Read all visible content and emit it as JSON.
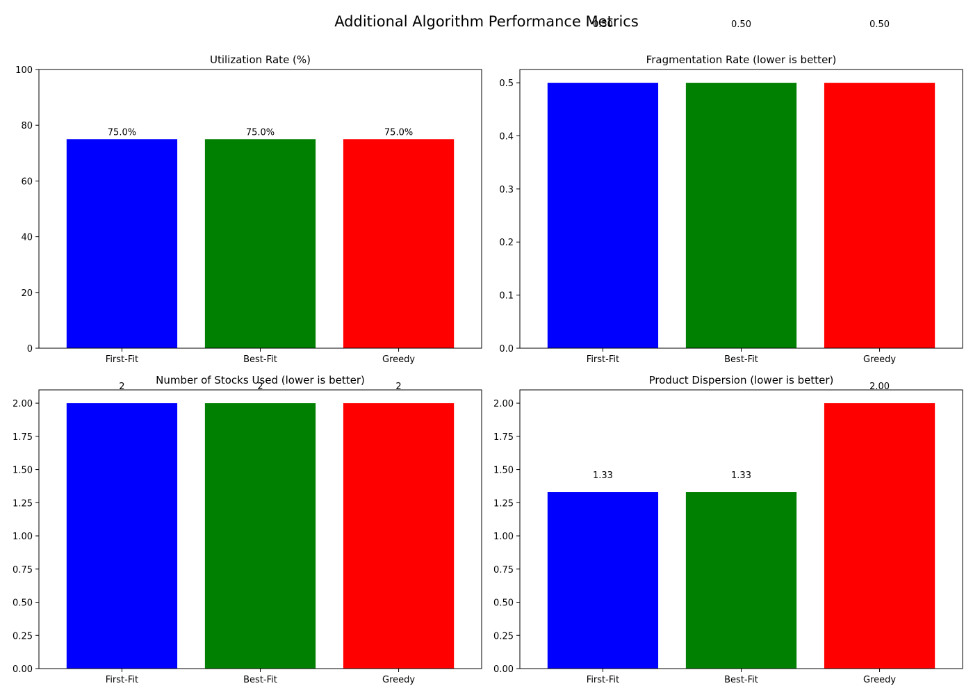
{
  "figure": {
    "title": "Additional Algorithm Performance Metrics"
  },
  "chart_data": [
    {
      "type": "bar",
      "title": "Utilization Rate (%)",
      "categories": [
        "First-Fit",
        "Best-Fit",
        "Greedy"
      ],
      "values": [
        75.0,
        75.0,
        75.0
      ],
      "value_labels": [
        "75.0%",
        "75.0%",
        "75.0%"
      ],
      "colors": [
        "#0000ff",
        "#008000",
        "#ff0000"
      ],
      "ylim": [
        0,
        100
      ],
      "yticks": [
        0,
        20,
        40,
        60,
        80,
        100
      ],
      "ytick_labels": [
        "0",
        "20",
        "40",
        "60",
        "80",
        "100"
      ],
      "xlabel": "",
      "ylabel": "",
      "grid": false
    },
    {
      "type": "bar",
      "title": "Fragmentation Rate (lower is better)",
      "categories": [
        "First-Fit",
        "Best-Fit",
        "Greedy"
      ],
      "values": [
        0.5,
        0.5,
        0.5
      ],
      "value_labels": [
        "0.50",
        "0.50",
        "0.50"
      ],
      "colors": [
        "#0000ff",
        "#008000",
        "#ff0000"
      ],
      "ylim": [
        0,
        0.525
      ],
      "yticks": [
        0,
        0.1,
        0.2,
        0.3,
        0.4,
        0.5
      ],
      "ytick_labels": [
        "0.0",
        "0.1",
        "0.2",
        "0.3",
        "0.4",
        "0.5"
      ],
      "xlabel": "",
      "ylabel": "",
      "grid": false
    },
    {
      "type": "bar",
      "title": "Number of Stocks Used (lower is better)",
      "categories": [
        "First-Fit",
        "Best-Fit",
        "Greedy"
      ],
      "values": [
        2,
        2,
        2
      ],
      "value_labels": [
        "2",
        "2",
        "2"
      ],
      "colors": [
        "#0000ff",
        "#008000",
        "#ff0000"
      ],
      "ylim": [
        0,
        2.1
      ],
      "yticks": [
        0,
        0.25,
        0.5,
        0.75,
        1.0,
        1.25,
        1.5,
        1.75,
        2.0
      ],
      "ytick_labels": [
        "0.00",
        "0.25",
        "0.50",
        "0.75",
        "1.00",
        "1.25",
        "1.50",
        "1.75",
        "2.00"
      ],
      "xlabel": "",
      "ylabel": "",
      "grid": false
    },
    {
      "type": "bar",
      "title": "Product Dispersion (lower is better)",
      "categories": [
        "First-Fit",
        "Best-Fit",
        "Greedy"
      ],
      "values": [
        1.33,
        1.33,
        2.0
      ],
      "value_labels": [
        "1.33",
        "1.33",
        "2.00"
      ],
      "colors": [
        "#0000ff",
        "#008000",
        "#ff0000"
      ],
      "ylim": [
        0,
        2.1
      ],
      "yticks": [
        0,
        0.25,
        0.5,
        0.75,
        1.0,
        1.25,
        1.5,
        1.75,
        2.0
      ],
      "ytick_labels": [
        "0.00",
        "0.25",
        "0.50",
        "0.75",
        "1.00",
        "1.25",
        "1.50",
        "1.75",
        "2.00"
      ],
      "xlabel": "",
      "ylabel": "",
      "grid": false
    }
  ]
}
